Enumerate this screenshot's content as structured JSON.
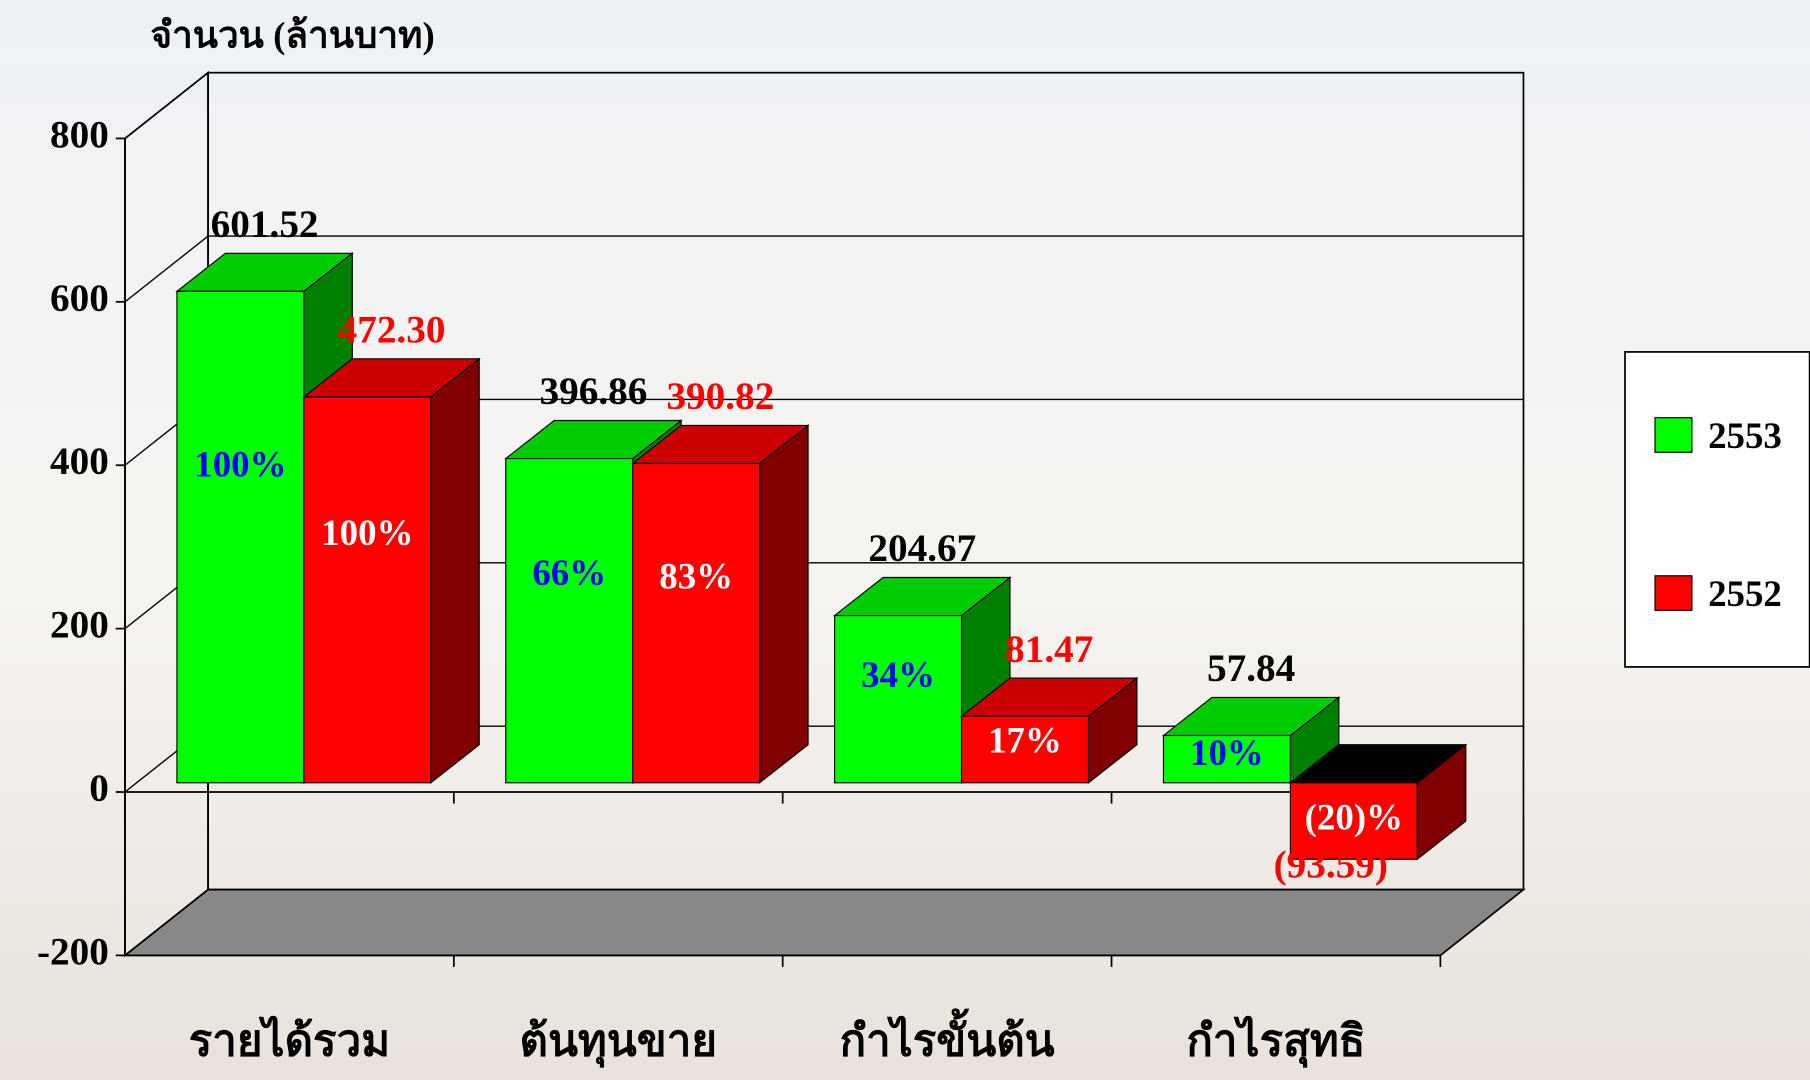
{
  "chart_data": {
    "type": "bar3d",
    "y_axis_label": "จำนวน (ล้านบาท)",
    "categories": [
      "รายได้รวม",
      "ต้นทุนขาย",
      "กำไรขั้นต้น",
      "กำไรสุทธิ"
    ],
    "series": [
      {
        "name": "2553",
        "color": "#00ff00",
        "values": [
          601.52,
          396.86,
          204.67,
          57.84
        ],
        "value_labels": [
          "601.52",
          "396.86",
          "204.67",
          "57.84"
        ],
        "percent_labels": [
          "100%",
          "66%",
          "34%",
          "10%"
        ]
      },
      {
        "name": "2552",
        "color": "#ff0000",
        "values": [
          472.3,
          390.82,
          81.47,
          -93.59
        ],
        "value_labels": [
          "472.30",
          "390.82",
          "81.47",
          "(93.59)"
        ],
        "percent_labels": [
          "100%",
          "83%",
          "17%",
          "(20)%"
        ]
      }
    ],
    "ylim": [
      -200,
      800
    ],
    "yticks": [
      -200,
      0,
      200,
      400,
      600,
      800
    ],
    "grid": true,
    "legend": "right"
  }
}
